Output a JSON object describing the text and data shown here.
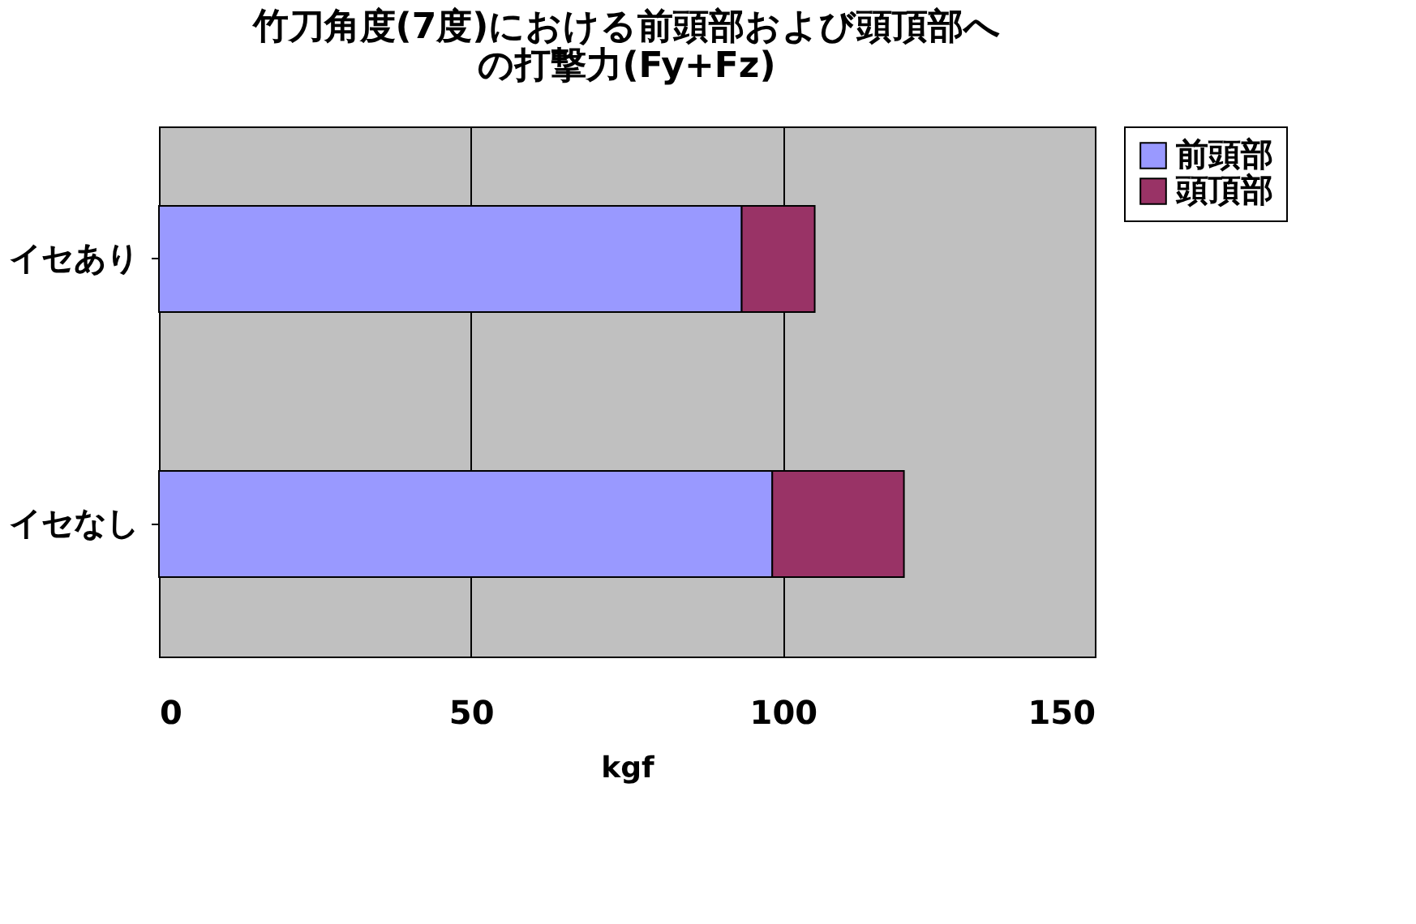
{
  "chart_data": {
    "type": "bar",
    "orientation": "horizontal",
    "stacked": true,
    "title": "竹刀角度(7度)における前頭部および頭頂部への打撃力(Fy+Fz)",
    "xlabel": "kgf",
    "categories": [
      "イセあり",
      "イセなし"
    ],
    "series": [
      {
        "name": "前頭部",
        "color": "#9999ff",
        "values": [
          93.4,
          98.3
        ]
      },
      {
        "name": "頭頂部",
        "color": "#993366",
        "values": [
          11.7,
          21.1
        ]
      }
    ],
    "xlim": [
      0,
      150
    ],
    "xticks": [
      0,
      50,
      100,
      150
    ],
    "grid": "x",
    "legend": "right"
  }
}
